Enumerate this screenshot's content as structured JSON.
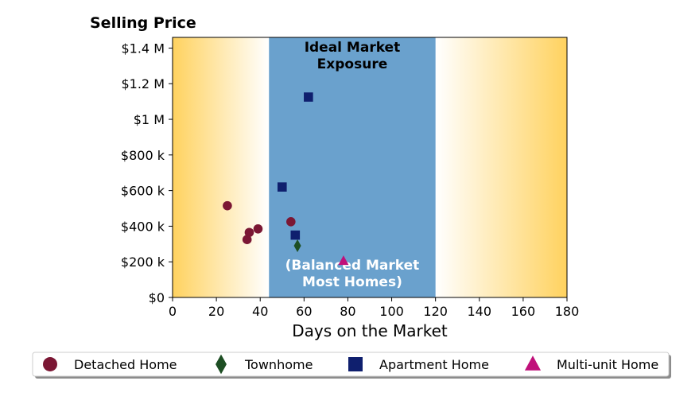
{
  "chart_data": {
    "type": "scatter",
    "title": "Selling Price",
    "xlabel": "Days on the Market",
    "ylabel": "",
    "xlim": [
      0,
      180
    ],
    "ylim": [
      0,
      1460000
    ],
    "x_ticks": [
      0,
      20,
      40,
      60,
      80,
      100,
      120,
      140,
      160,
      180
    ],
    "y_ticks": [
      {
        "value": 0,
        "label": "$0"
      },
      {
        "value": 200000,
        "label": "$200 k"
      },
      {
        "value": 400000,
        "label": "$400 k"
      },
      {
        "value": 600000,
        "label": "$600 k"
      },
      {
        "value": 800000,
        "label": "$800 k"
      },
      {
        "value": 1000000,
        "label": "$1 M"
      },
      {
        "value": 1200000,
        "label": "$1.2 M"
      },
      {
        "value": 1400000,
        "label": "$1.4 M"
      }
    ],
    "grid": false,
    "legend_position": "bottom",
    "regions": [
      {
        "x_start": 44,
        "x_end": 120,
        "color": "#6aa1cd",
        "label_top": [
          "Ideal Market",
          "Exposure"
        ],
        "label_bottom": [
          "(Balanced Market",
          "Most Homes)"
        ]
      }
    ],
    "background_gradient": {
      "edge_color": "#ffd25f",
      "center_color": "#ffffff"
    },
    "series": [
      {
        "name": "Detached Home",
        "marker": "circle",
        "color": "#7b1734",
        "points": [
          [
            25,
            515000
          ],
          [
            35,
            365000
          ],
          [
            34,
            325000
          ],
          [
            39,
            385000
          ],
          [
            54,
            425000
          ]
        ]
      },
      {
        "name": "Townhome",
        "marker": "diamond",
        "color": "#1d4e23",
        "points": [
          [
            57,
            290000
          ]
        ]
      },
      {
        "name": "Apartment Home",
        "marker": "square",
        "color": "#0f1f6e",
        "points": [
          [
            62,
            1125000
          ],
          [
            50,
            620000
          ],
          [
            56,
            350000
          ]
        ]
      },
      {
        "name": "Multi-unit Home",
        "marker": "triangle",
        "color": "#c0107a",
        "points": [
          [
            78,
            205000
          ]
        ]
      }
    ]
  }
}
